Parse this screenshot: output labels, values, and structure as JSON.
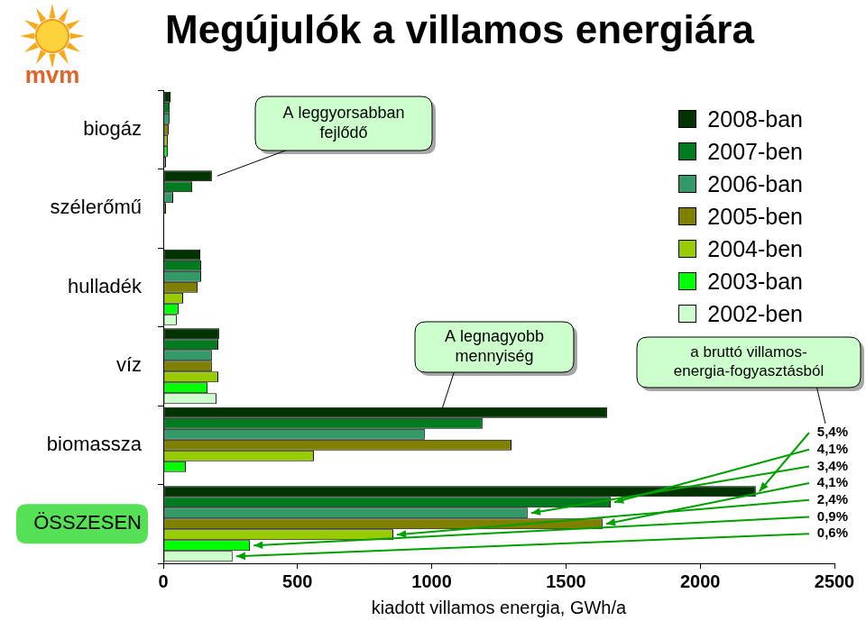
{
  "logo": "mvm",
  "chart_data": {
    "type": "bar",
    "orientation": "horizontal",
    "title": "Megújulók a villamos energiára",
    "categories": [
      "biogáz",
      "szélerőmű",
      "hulladék",
      "víz",
      "biomassza",
      "ÖSSZESEN"
    ],
    "series": [
      {
        "name": "2008-ban",
        "color": "#003300",
        "values": [
          27,
          181,
          138,
          208,
          1653,
          2207
        ]
      },
      {
        "name": "2007-ben",
        "color": "#007a1e",
        "values": [
          24,
          108,
          141,
          205,
          1189,
          1667
        ]
      },
      {
        "name": "2006-ban",
        "color": "#339966",
        "values": [
          24,
          37,
          141,
          181,
          974,
          1357
        ]
      },
      {
        "name": "2005-ben",
        "color": "#808000",
        "values": [
          20,
          10,
          128,
          181,
          1297,
          1636
        ]
      },
      {
        "name": "2004-ben",
        "color": "#99cc00",
        "values": [
          17,
          0,
          74,
          205,
          561,
          857
        ]
      },
      {
        "name": "2003-ban",
        "color": "#00ff00",
        "values": [
          17,
          0,
          57,
          165,
          84,
          323
        ]
      },
      {
        "name": "2002-ben",
        "color": "#ccffcc",
        "values": [
          10,
          0,
          50,
          198,
          0,
          258
        ]
      }
    ],
    "xlim": [
      0,
      2500
    ],
    "xticks": [
      0,
      500,
      1000,
      1500,
      2000,
      2500
    ],
    "x_label": "kiadott villamos energia, GWh/a",
    "grid": false,
    "legend": "upper right",
    "annotations": [
      {
        "text": [
          "A leggyorsabban",
          "fejlődő"
        ]
      },
      {
        "text": [
          "A legnagyobb",
          "mennyiség"
        ]
      }
    ],
    "shares": {
      "title": [
        "a bruttó villamos-",
        "energia-fogyasztásból"
      ],
      "values": [
        5.4,
        4.1,
        3.4,
        4.1,
        2.4,
        0.9,
        0.6
      ],
      "labels": [
        "5,4%",
        "4,1%",
        "3,4%",
        "4,1%",
        "2,4%",
        "0,9%",
        "0,6%"
      ]
    }
  }
}
